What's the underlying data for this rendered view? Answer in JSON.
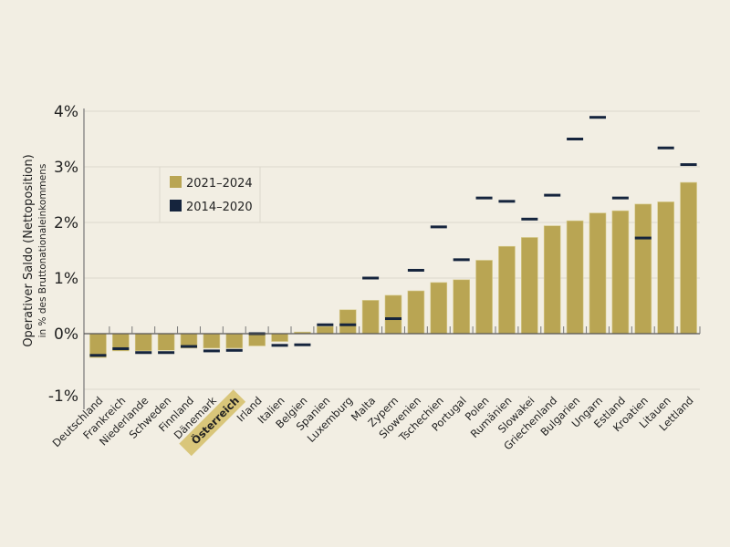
{
  "chart_data": {
    "type": "bar",
    "ylabel": "Operativer Saldo (Nettoposition)",
    "ylabel_sub": "in % des Bruttonationaleinkommens",
    "ylim": [
      -1,
      4
    ],
    "yticks": [
      -1,
      0,
      1,
      2,
      3,
      4
    ],
    "ytick_labels": [
      "-1%",
      "0%",
      "1%",
      "2%",
      "3%",
      "4%"
    ],
    "grid": true,
    "legend_placement": "top-left",
    "highlight_category": "Österreich",
    "highlight_color": "#d9c67a",
    "categories": [
      "Deutschland",
      "Frankreich",
      "Niederlande",
      "Schweden",
      "Finnland",
      "Dänemark",
      "Österreich",
      "Irland",
      "Italien",
      "Belgien",
      "Spanien",
      "Luxemburg",
      "Malta",
      "Zypern",
      "Slowenien",
      "Tschechien",
      "Portugal",
      "Polen",
      "Rumänien",
      "Slowakei",
      "Griechenland",
      "Bulgarien",
      "Ungarn",
      "Estland",
      "Kroatien",
      "Litauen",
      "Lettland"
    ],
    "series": [
      {
        "name": "2021–2024",
        "style": "bar",
        "color": "#b9a553",
        "values": [
          -0.43,
          -0.31,
          -0.31,
          -0.3,
          -0.26,
          -0.26,
          -0.26,
          -0.22,
          -0.14,
          0.03,
          0.13,
          0.43,
          0.6,
          0.69,
          0.77,
          0.92,
          0.97,
          1.32,
          1.57,
          1.73,
          1.94,
          2.03,
          2.17,
          2.21,
          2.33,
          2.37,
          2.72
        ]
      },
      {
        "name": "2014–2020",
        "style": "marker-dash",
        "color": "#15243d",
        "values": [
          -0.39,
          -0.27,
          -0.34,
          -0.34,
          -0.23,
          -0.31,
          -0.3,
          0.0,
          -0.21,
          -0.2,
          0.16,
          0.16,
          1.0,
          0.27,
          1.14,
          1.92,
          1.33,
          2.44,
          2.38,
          2.06,
          2.49,
          3.5,
          3.89,
          2.44,
          1.72,
          3.34,
          3.04
        ]
      }
    ]
  }
}
